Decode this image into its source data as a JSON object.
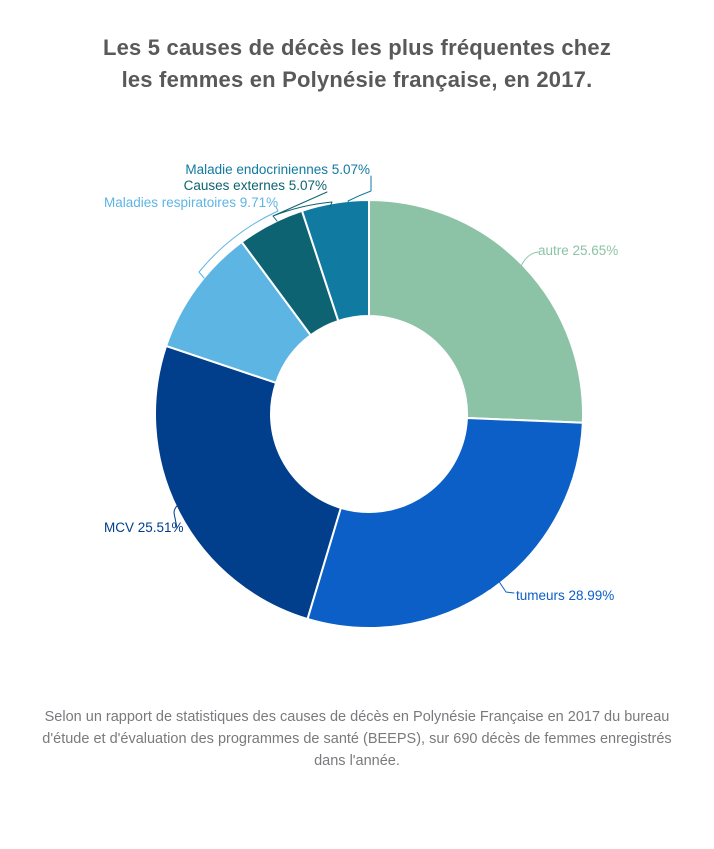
{
  "title": "Les 5 causes de décès les plus fréquentes chez les femmes en Polynésie française, en 2017.",
  "title_lines": {
    "line1": "Les 5 causes de décès les plus fréquentes chez",
    "line2": "les femmes en Polynésie française, en 2017."
  },
  "caption": "Selon un rapport de statistiques des causes de décès en Polynésie Française en 2017 du bureau d'étude et d'évaluation des programmes de santé (BEEPS), sur 690 décès de femmes enregistrés dans l'année.",
  "colors": {
    "background": "#FFFFFF",
    "title_text": "#58595B",
    "caption_text": "#797A7D",
    "slice_divider": "#FFFFFF"
  },
  "chart_data": {
    "type": "pie",
    "subtype": "donut",
    "title": "Les 5 causes de décès les plus fréquentes chez les femmes en Polynésie française, en 2017.",
    "start_angle_deg": 0,
    "direction": "clockwise",
    "inner_radius_ratio": 0.46,
    "units": "%",
    "total_deaths_referenced": 690,
    "slices": [
      {
        "label": "autre",
        "value": 25.65,
        "display": "autre 25.65%",
        "color": "#8CC3A6"
      },
      {
        "label": "tumeurs",
        "value": 28.99,
        "display": "tumeurs 28.99%",
        "color": "#0B5FC7"
      },
      {
        "label": "MCV",
        "value": 25.51,
        "display": "MCV 25.51%",
        "color": "#013E8B"
      },
      {
        "label": "Maladies respiratoires",
        "value": 9.71,
        "display": "Maladies respiratoires 9.71%",
        "color": "#5DB5E4"
      },
      {
        "label": "Causes externes",
        "value": 5.07,
        "display": "Causes externes 5.07%",
        "color": "#0D6372"
      },
      {
        "label": "Maladie endocriniennes",
        "value": 5.07,
        "display": "Maladie endocriniennes 5.07%",
        "color": "#107AA1"
      }
    ]
  }
}
